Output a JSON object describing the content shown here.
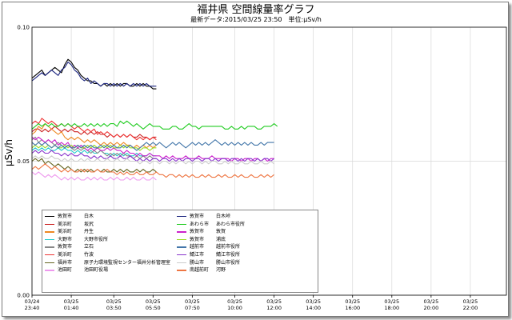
{
  "chart_data": {
    "type": "line",
    "title": "福井県 空間線量率グラフ",
    "subtitle": "最新データ:2015/03/25 23:50　単位:μSv/h",
    "ylabel": "μSv/h",
    "ylim": [
      0.0,
      0.1
    ],
    "yticks": [
      "0.00",
      "0.05",
      "0.10"
    ],
    "xticks": [
      {
        "date": "03/24",
        "time": "23:40"
      },
      {
        "date": "03/25",
        "time": "01:40"
      },
      {
        "date": "03/25",
        "time": "03:50"
      },
      {
        "date": "03/25",
        "time": "05:50"
      },
      {
        "date": "03/25",
        "time": "07:50"
      },
      {
        "date": "03/25",
        "time": "10:00"
      },
      {
        "date": "03/25",
        "time": "12:00"
      },
      {
        "date": "03/25",
        "time": "14:00"
      },
      {
        "date": "03/25",
        "time": "16:00"
      },
      {
        "date": "03/25",
        "time": "18:00"
      },
      {
        "date": "03/25",
        "time": "20:00"
      },
      {
        "date": "03/25",
        "time": "22:00"
      }
    ],
    "xrange_hours": [
      0,
      24.17
    ],
    "grid": true,
    "legend": "bottom-left",
    "series": [
      {
        "city": "敦賀市",
        "name": "白木",
        "color": "#000000",
        "values": [
          0.081,
          0.082,
          0.083,
          0.084,
          0.082,
          0.083,
          0.084,
          0.085,
          0.084,
          0.083,
          0.086,
          0.088,
          0.087,
          0.085,
          0.084,
          0.082,
          0.081,
          0.08,
          0.08,
          0.079,
          0.079,
          0.078,
          0.079,
          0.078,
          0.079,
          0.078,
          0.079,
          0.078,
          0.079,
          0.079,
          0.078,
          0.078,
          0.079,
          0.078,
          0.079,
          0.078,
          0.078,
          0.077,
          0.077
        ]
      },
      {
        "city": "美浜町",
        "name": "坂尻",
        "color": "#cc2222",
        "values": [
          0.061,
          0.062,
          0.062,
          0.061,
          0.062,
          0.061,
          0.062,
          0.063,
          0.062,
          0.061,
          0.062,
          0.061,
          0.062,
          0.061,
          0.061,
          0.06,
          0.061,
          0.06,
          0.061,
          0.06,
          0.061,
          0.06,
          0.06,
          0.059,
          0.06,
          0.059,
          0.06,
          0.059,
          0.06,
          0.059,
          0.06,
          0.059,
          0.059,
          0.06,
          0.059,
          0.059,
          0.058,
          0.059,
          0.059
        ]
      },
      {
        "city": "美浜町",
        "name": "丹生",
        "color": "#ee8822",
        "values": [
          0.06,
          0.061,
          0.063,
          0.062,
          0.064,
          0.063,
          0.062,
          0.061,
          0.06,
          0.061,
          0.059,
          0.058,
          0.059,
          0.058,
          0.059,
          0.058,
          0.057,
          0.058,
          0.057,
          0.058,
          0.057,
          0.056,
          0.057,
          0.056,
          0.057,
          0.056,
          0.057,
          0.056,
          0.057,
          0.056,
          0.056,
          0.055,
          0.056,
          0.055,
          0.056,
          0.055,
          0.056,
          0.055,
          0.056
        ]
      },
      {
        "city": "大野市",
        "name": "大野市役所",
        "color": "#22cccc",
        "values": [
          0.054,
          0.055,
          0.054,
          0.055,
          0.054,
          0.055,
          0.054,
          0.054,
          0.055,
          0.054,
          0.055,
          0.054,
          0.054,
          0.053,
          0.054,
          0.053,
          0.054,
          0.053,
          0.054,
          0.053,
          0.053,
          0.054,
          0.053,
          0.053,
          0.052,
          0.053,
          0.052,
          0.053,
          0.052,
          0.053,
          0.052,
          0.052,
          0.053,
          0.052,
          0.052,
          0.052,
          0.053,
          0.052,
          0.052
        ]
      },
      {
        "city": "敦賀市",
        "name": "立石",
        "color": "#888888",
        "values": [
          0.058,
          0.059,
          0.057,
          0.058,
          0.057,
          0.058,
          0.057,
          0.056,
          0.057,
          0.056,
          0.055,
          0.056,
          0.055,
          0.054,
          0.055,
          0.054,
          0.055,
          0.054,
          0.053,
          0.054,
          0.053,
          0.054,
          0.053,
          0.052,
          0.053,
          0.052,
          0.053,
          0.052,
          0.053,
          0.052,
          0.052,
          0.051,
          0.052,
          0.051,
          0.052,
          0.051,
          0.052,
          0.051,
          0.051
        ]
      },
      {
        "city": "美浜町",
        "name": "竹波",
        "color": "#ee3333",
        "values": [
          0.064,
          0.065,
          0.064,
          0.066,
          0.065,
          0.064,
          0.065,
          0.064,
          0.063,
          0.064,
          0.063,
          0.064,
          0.063,
          0.062,
          0.063,
          0.062,
          0.061,
          0.062,
          0.061,
          0.062,
          0.06,
          0.061,
          0.06,
          0.061,
          0.06,
          0.059,
          0.06,
          0.059,
          0.06,
          0.059,
          0.06,
          0.059,
          0.058,
          0.059,
          0.058,
          0.059,
          0.058,
          0.059,
          0.058
        ]
      },
      {
        "city": "福井市",
        "name": "原子力環境監視センター福井分析管理室",
        "color": "#666622",
        "values": [
          0.05,
          0.051,
          0.05,
          0.051,
          0.049,
          0.05,
          0.049,
          0.048,
          0.049,
          0.048,
          0.047,
          0.048,
          0.047,
          0.046,
          0.047,
          0.046,
          0.047,
          0.046,
          0.047,
          0.046,
          0.047,
          0.046,
          0.047,
          0.046,
          0.046,
          0.047,
          0.046,
          0.047,
          0.046,
          0.047,
          0.046,
          0.046,
          0.047,
          0.046,
          0.047,
          0.046,
          0.046,
          0.047,
          0.046
        ]
      },
      {
        "city": "池田町",
        "name": "池田町役場",
        "color": "#ee99ee",
        "values": [
          0.046,
          0.045,
          0.046,
          0.045,
          0.044,
          0.045,
          0.044,
          0.045,
          0.044,
          0.043,
          0.044,
          0.043,
          0.044,
          0.043,
          0.044,
          0.043,
          0.043,
          0.044,
          0.043,
          0.044,
          0.043,
          0.044,
          0.043,
          0.043,
          0.044,
          0.043,
          0.044,
          0.043,
          0.043,
          0.044,
          0.043,
          0.044,
          0.043,
          0.043,
          0.044,
          0.043,
          0.043,
          0.044,
          0.043
        ]
      },
      {
        "city": "敦賀市",
        "name": "白木峠",
        "color": "#1a237e",
        "values": [
          0.08,
          0.081,
          0.082,
          0.083,
          0.082,
          0.083,
          0.084,
          0.083,
          0.082,
          0.084,
          0.085,
          0.087,
          0.086,
          0.084,
          0.083,
          0.081,
          0.08,
          0.081,
          0.079,
          0.08,
          0.079,
          0.078,
          0.079,
          0.079,
          0.078,
          0.079,
          0.078,
          0.079,
          0.078,
          0.079,
          0.078,
          0.079,
          0.078,
          0.079,
          0.078,
          0.079,
          0.078,
          0.078,
          0.078
        ]
      },
      {
        "city": "あわら市",
        "name": "あわら市役所",
        "color": "#22cc22",
        "values": [
          0.062,
          0.063,
          0.064,
          0.063,
          0.064,
          0.063,
          0.064,
          0.063,
          0.063,
          0.064,
          0.063,
          0.064,
          0.063,
          0.064,
          0.063,
          0.063,
          0.064,
          0.063,
          0.064,
          0.063,
          0.064,
          0.063,
          0.064,
          0.063,
          0.064,
          0.064,
          0.063,
          0.065,
          0.064,
          0.065,
          0.064,
          0.063,
          0.064,
          0.063,
          0.062,
          0.063,
          0.064,
          0.063,
          0.063,
          0.063,
          0.062,
          0.062,
          0.062,
          0.063,
          0.063,
          0.062,
          0.062,
          0.063,
          0.064,
          0.063,
          0.063,
          0.062,
          0.063,
          0.063,
          0.063,
          0.063,
          0.063,
          0.063,
          0.063,
          0.062,
          0.062,
          0.063,
          0.062,
          0.062,
          0.063,
          0.062,
          0.063,
          0.063,
          0.063,
          0.062,
          0.062,
          0.063,
          0.063,
          0.063,
          0.064,
          0.063
        ]
      },
      {
        "city": "敦賀市",
        "name": "敦賀",
        "color": "#cc22cc",
        "values": [
          0.059,
          0.058,
          0.059,
          0.058,
          0.057,
          0.058,
          0.057,
          0.058,
          0.056,
          0.057,
          0.056,
          0.057,
          0.055,
          0.056,
          0.055,
          0.056,
          0.055,
          0.054,
          0.055,
          0.054,
          0.055,
          0.054,
          0.054,
          0.055,
          0.054,
          0.055,
          0.054,
          0.054,
          0.053,
          0.054,
          0.053,
          0.053,
          0.052,
          0.053,
          0.052,
          0.052,
          0.053,
          0.052,
          0.052,
          0.052,
          0.051,
          0.052,
          0.051,
          0.052,
          0.051,
          0.051,
          0.051,
          0.052,
          0.051,
          0.051,
          0.051,
          0.052,
          0.051,
          0.051,
          0.051,
          0.052,
          0.051,
          0.051,
          0.051,
          0.051,
          0.051,
          0.05,
          0.051,
          0.051,
          0.05,
          0.051,
          0.051,
          0.05,
          0.051,
          0.051,
          0.05,
          0.051,
          0.05,
          0.051,
          0.051
        ]
      },
      {
        "city": "敦賀市",
        "name": "浦底",
        "color": "#99dd22",
        "values": [
          0.055,
          0.056,
          0.055,
          0.056,
          0.055,
          0.056,
          0.055,
          0.056,
          0.055,
          0.055,
          0.056,
          0.055,
          0.056,
          0.055,
          0.056,
          0.055,
          0.055,
          0.056,
          0.055,
          0.056,
          0.055,
          0.055,
          0.056,
          0.055,
          0.056,
          0.055,
          0.055,
          0.056,
          0.055,
          0.056,
          0.055,
          0.055,
          0.055,
          0.054,
          0.055,
          0.055,
          0.054,
          0.055,
          0.055
        ]
      },
      {
        "city": "越前市",
        "name": "越前市役所",
        "color": "#4477aa",
        "values": [
          0.057,
          0.056,
          0.057,
          0.056,
          0.057,
          0.056,
          0.055,
          0.056,
          0.055,
          0.056,
          0.055,
          0.056,
          0.055,
          0.055,
          0.056,
          0.055,
          0.056,
          0.055,
          0.056,
          0.055,
          0.055,
          0.056,
          0.055,
          0.056,
          0.055,
          0.056,
          0.055,
          0.055,
          0.056,
          0.055,
          0.056,
          0.055,
          0.054,
          0.055,
          0.056,
          0.057,
          0.056,
          0.057,
          0.056,
          0.057,
          0.056,
          0.055,
          0.056,
          0.057,
          0.056,
          0.057,
          0.056,
          0.055,
          0.056,
          0.057,
          0.056,
          0.057,
          0.056,
          0.057,
          0.056,
          0.057,
          0.058,
          0.057,
          0.056,
          0.057,
          0.056,
          0.057,
          0.056,
          0.057,
          0.056,
          0.057,
          0.056,
          0.057,
          0.056,
          0.056,
          0.057,
          0.056,
          0.057,
          0.057,
          0.057
        ]
      },
      {
        "city": "鯖江市",
        "name": "鯖江市役所",
        "color": "#8833cc",
        "values": [
          0.053,
          0.054,
          0.053,
          0.054,
          0.053,
          0.053,
          0.054,
          0.053,
          0.053,
          0.052,
          0.053,
          0.052,
          0.053,
          0.052,
          0.052,
          0.053,
          0.052,
          0.052,
          0.051,
          0.052,
          0.051,
          0.052,
          0.051,
          0.051,
          0.052,
          0.051,
          0.051,
          0.052,
          0.051,
          0.051,
          0.052,
          0.051,
          0.05,
          0.051,
          0.05,
          0.051,
          0.05,
          0.051,
          0.051,
          0.05,
          0.051,
          0.051,
          0.05,
          0.051,
          0.05,
          0.051,
          0.05,
          0.051,
          0.051,
          0.05,
          0.051,
          0.051,
          0.05,
          0.051,
          0.051,
          0.05,
          0.051,
          0.05,
          0.051,
          0.051,
          0.05,
          0.051,
          0.051,
          0.05,
          0.051,
          0.05,
          0.051,
          0.051,
          0.05,
          0.051,
          0.05,
          0.051,
          0.051,
          0.05,
          0.051
        ]
      },
      {
        "city": "勝山市",
        "name": "勝山市役所",
        "color": "#cccccc",
        "values": [
          0.051,
          0.052,
          0.051,
          0.052,
          0.051,
          0.051,
          0.052,
          0.051,
          0.051,
          0.05,
          0.051,
          0.05,
          0.051,
          0.05,
          0.05,
          0.051,
          0.05,
          0.051,
          0.05,
          0.05,
          0.051,
          0.05,
          0.05,
          0.051,
          0.05,
          0.05,
          0.051,
          0.05,
          0.05,
          0.051,
          0.05,
          0.05,
          0.05,
          0.049,
          0.05,
          0.05,
          0.049,
          0.05,
          0.05,
          0.049,
          0.05,
          0.05,
          0.049,
          0.05,
          0.049,
          0.05,
          0.05,
          0.049,
          0.05,
          0.049,
          0.05,
          0.05,
          0.049,
          0.05,
          0.049,
          0.05,
          0.05,
          0.049,
          0.049,
          0.05,
          0.049,
          0.05,
          0.049,
          0.049,
          0.05,
          0.049,
          0.049,
          0.05,
          0.049,
          0.049,
          0.05,
          0.049,
          0.049,
          0.05,
          0.049
        ]
      },
      {
        "city": "南越前町",
        "name": "河野",
        "color": "#ee7744",
        "values": [
          0.047,
          0.048,
          0.047,
          0.048,
          0.049,
          0.048,
          0.047,
          0.048,
          0.047,
          0.046,
          0.047,
          0.046,
          0.047,
          0.046,
          0.046,
          0.047,
          0.046,
          0.047,
          0.046,
          0.046,
          0.047,
          0.046,
          0.046,
          0.047,
          0.046,
          0.046,
          0.045,
          0.046,
          0.045,
          0.046,
          0.045,
          0.045,
          0.046,
          0.045,
          0.045,
          0.046,
          0.045,
          0.045,
          0.046,
          0.045,
          0.045,
          0.044,
          0.045,
          0.045,
          0.044,
          0.045,
          0.044,
          0.045,
          0.044,
          0.045,
          0.044,
          0.044,
          0.045,
          0.044,
          0.045,
          0.044,
          0.044,
          0.045,
          0.044,
          0.045,
          0.044,
          0.044,
          0.045,
          0.044,
          0.045,
          0.044,
          0.044,
          0.045,
          0.044,
          0.044,
          0.045,
          0.044,
          0.045,
          0.044,
          0.045
        ]
      }
    ]
  }
}
